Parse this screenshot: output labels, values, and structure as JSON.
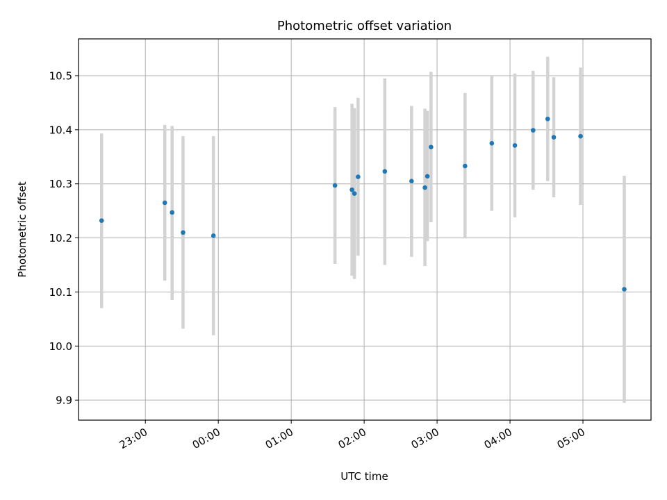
{
  "chart_data": {
    "type": "scatter",
    "title": "Photometric offset variation",
    "xlabel": "UTC time",
    "ylabel": "Photometric offset",
    "x_unit": "hours",
    "xlim": [
      "22:05",
      "05:56"
    ],
    "ylim": [
      9.863,
      10.568
    ],
    "x_ticks": [
      "23:00",
      "00:00",
      "01:00",
      "02:00",
      "03:00",
      "04:00",
      "05:00"
    ],
    "y_ticks": [
      9.9,
      10.0,
      10.1,
      10.2,
      10.3,
      10.4,
      10.5
    ],
    "grid": true,
    "colors": {
      "point": "#1f77b4",
      "errorbar": "#d3d3d3",
      "grid": "#b0b0b0"
    },
    "points": [
      {
        "x": "22:24",
        "y": 10.232,
        "ylow": 10.07,
        "yhigh": 10.393
      },
      {
        "x": "23:16",
        "y": 10.265,
        "ylow": 10.121,
        "yhigh": 10.409
      },
      {
        "x": "23:22",
        "y": 10.247,
        "ylow": 10.085,
        "yhigh": 10.407
      },
      {
        "x": "23:31",
        "y": 10.21,
        "ylow": 10.032,
        "yhigh": 10.388
      },
      {
        "x": "23:56",
        "y": 10.204,
        "ylow": 10.02,
        "yhigh": 10.388
      },
      {
        "x": "01:36",
        "y": 10.297,
        "ylow": 10.152,
        "yhigh": 10.442
      },
      {
        "x": "01:50",
        "y": 10.289,
        "ylow": 10.13,
        "yhigh": 10.448
      },
      {
        "x": "01:52",
        "y": 10.282,
        "ylow": 10.124,
        "yhigh": 10.44
      },
      {
        "x": "01:55",
        "y": 10.313,
        "ylow": 10.167,
        "yhigh": 10.459
      },
      {
        "x": "02:17",
        "y": 10.323,
        "ylow": 10.15,
        "yhigh": 10.495
      },
      {
        "x": "02:39",
        "y": 10.305,
        "ylow": 10.165,
        "yhigh": 10.444
      },
      {
        "x": "02:50",
        "y": 10.293,
        "ylow": 10.148,
        "yhigh": 10.439
      },
      {
        "x": "02:52",
        "y": 10.314,
        "ylow": 10.194,
        "yhigh": 10.435
      },
      {
        "x": "02:55",
        "y": 10.368,
        "ylow": 10.229,
        "yhigh": 10.507
      },
      {
        "x": "03:23",
        "y": 10.333,
        "ylow": 10.199,
        "yhigh": 10.468
      },
      {
        "x": "03:45",
        "y": 10.375,
        "ylow": 10.25,
        "yhigh": 10.5
      },
      {
        "x": "04:04",
        "y": 10.371,
        "ylow": 10.238,
        "yhigh": 10.504
      },
      {
        "x": "04:19",
        "y": 10.399,
        "ylow": 10.289,
        "yhigh": 10.509
      },
      {
        "x": "04:31",
        "y": 10.42,
        "ylow": 10.305,
        "yhigh": 10.535
      },
      {
        "x": "04:36",
        "y": 10.386,
        "ylow": 10.275,
        "yhigh": 10.497
      },
      {
        "x": "04:58",
        "y": 10.388,
        "ylow": 10.261,
        "yhigh": 10.515
      },
      {
        "x": "05:34",
        "y": 10.105,
        "ylow": 9.895,
        "yhigh": 10.315
      }
    ]
  }
}
